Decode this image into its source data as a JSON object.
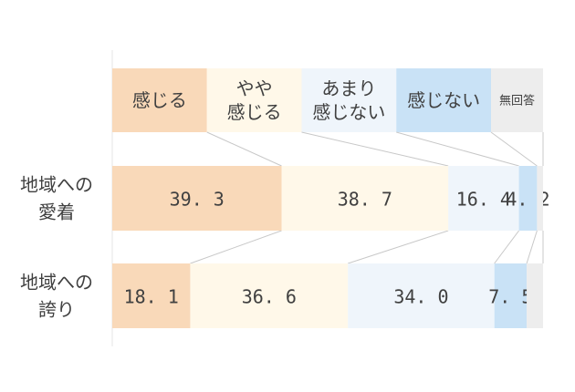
{
  "chart_data": {
    "type": "bar",
    "orientation": "horizontal",
    "stacked": true,
    "percent": true,
    "xlim": [
      0,
      100
    ],
    "grid": false,
    "legend_position": "top",
    "categories": [
      "地域への愛着",
      "地域への誇り"
    ],
    "category_lines": [
      [
        "地域への",
        "愛着"
      ],
      [
        "地域への",
        "誇り"
      ]
    ],
    "series": [
      {
        "name": "感じる",
        "legend_lines": [
          "感じる"
        ],
        "color": "#F9D9B9",
        "values": [
          39.3,
          18.1
        ],
        "labels": [
          "39.3",
          "18.1"
        ]
      },
      {
        "name": "やや感じる",
        "legend_lines": [
          "やや",
          "感じる"
        ],
        "color": "#FFF8E9",
        "values": [
          38.7,
          36.6
        ],
        "labels": [
          "38.7",
          "36.6"
        ]
      },
      {
        "name": "あまり感じない",
        "legend_lines": [
          "あまり",
          "感じない"
        ],
        "color": "#EFF5FB",
        "values": [
          16.4,
          34.0
        ],
        "labels": [
          "16.4",
          "34.0"
        ]
      },
      {
        "name": "感じない",
        "legend_lines": [
          "感じない"
        ],
        "color": "#C9E2F6",
        "values": [
          4.2,
          7.5
        ],
        "labels": [
          "4.2",
          "7.5"
        ]
      },
      {
        "name": "無回答",
        "legend_lines": [
          "無回答"
        ],
        "color": "#EDEDED",
        "values": [
          1.4,
          3.8
        ],
        "labels": [
          "",
          ""
        ]
      }
    ]
  }
}
